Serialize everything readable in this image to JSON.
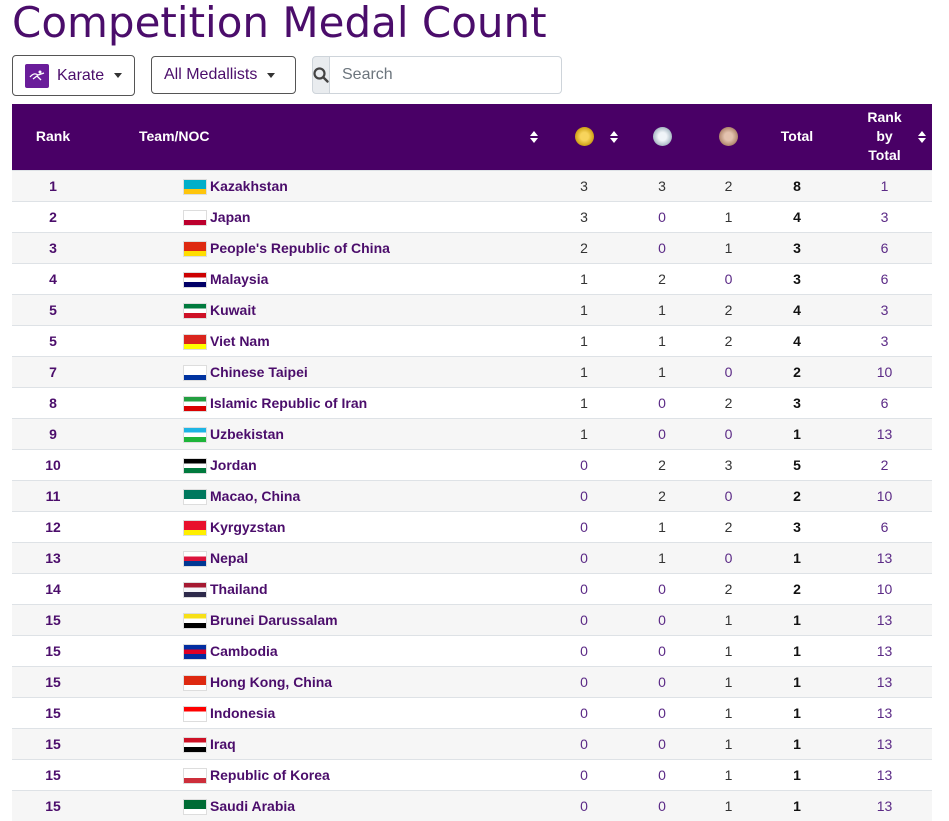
{
  "page": {
    "title": "Competition Medal Count"
  },
  "toolbar": {
    "sport_label": "Karate",
    "filter_label": "All Medallists",
    "search_placeholder": "Search"
  },
  "table": {
    "headers": {
      "rank": "Rank",
      "team": "Team/NOC",
      "total": "Total",
      "rank_by_total_1": "Rank",
      "rank_by_total_2": "by",
      "rank_by_total_3": "Total"
    },
    "rows": [
      {
        "rank": "1",
        "team": "Kazakhstan",
        "flag": [
          "#00afca",
          "#00afca",
          "#fec50c"
        ],
        "gold": "3",
        "silver": "3",
        "bronze": "2",
        "total": "8",
        "rbt": "1"
      },
      {
        "rank": "2",
        "team": "Japan",
        "flag": [
          "#ffffff",
          "#ffffff",
          "#bc002d"
        ],
        "gold": "3",
        "silver": "0",
        "bronze": "1",
        "total": "4",
        "rbt": "3"
      },
      {
        "rank": "3",
        "team": "People's Republic of China",
        "flag": [
          "#de2910",
          "#de2910",
          "#ffde00"
        ],
        "gold": "2",
        "silver": "0",
        "bronze": "1",
        "total": "3",
        "rbt": "6"
      },
      {
        "rank": "4",
        "team": "Malaysia",
        "flag": [
          "#cc0001",
          "#ffffff",
          "#010066"
        ],
        "gold": "1",
        "silver": "2",
        "bronze": "0",
        "total": "3",
        "rbt": "6"
      },
      {
        "rank": "5",
        "team": "Kuwait",
        "flag": [
          "#007a3d",
          "#ffffff",
          "#ce1126"
        ],
        "gold": "1",
        "silver": "1",
        "bronze": "2",
        "total": "4",
        "rbt": "3"
      },
      {
        "rank": "5",
        "team": "Viet Nam",
        "flag": [
          "#da251d",
          "#da251d",
          "#ffff00"
        ],
        "gold": "1",
        "silver": "1",
        "bronze": "2",
        "total": "4",
        "rbt": "3"
      },
      {
        "rank": "7",
        "team": "Chinese Taipei",
        "flag": [
          "#ffffff",
          "#ffffff",
          "#0033a0"
        ],
        "gold": "1",
        "silver": "1",
        "bronze": "0",
        "total": "2",
        "rbt": "10"
      },
      {
        "rank": "8",
        "team": "Islamic Republic of Iran",
        "flag": [
          "#239f40",
          "#ffffff",
          "#da0000"
        ],
        "gold": "1",
        "silver": "0",
        "bronze": "2",
        "total": "3",
        "rbt": "6"
      },
      {
        "rank": "9",
        "team": "Uzbekistan",
        "flag": [
          "#1eb5e4",
          "#ffffff",
          "#1eb53a"
        ],
        "gold": "1",
        "silver": "0",
        "bronze": "0",
        "total": "1",
        "rbt": "13"
      },
      {
        "rank": "10",
        "team": "Jordan",
        "flag": [
          "#000000",
          "#ffffff",
          "#007a3d"
        ],
        "gold": "0",
        "silver": "2",
        "bronze": "3",
        "total": "5",
        "rbt": "2"
      },
      {
        "rank": "11",
        "team": "Macao, China",
        "flag": [
          "#00785e",
          "#00785e",
          "#ffffff"
        ],
        "gold": "0",
        "silver": "2",
        "bronze": "0",
        "total": "2",
        "rbt": "10"
      },
      {
        "rank": "12",
        "team": "Kyrgyzstan",
        "flag": [
          "#e8112d",
          "#e8112d",
          "#ffef00"
        ],
        "gold": "0",
        "silver": "1",
        "bronze": "2",
        "total": "3",
        "rbt": "6"
      },
      {
        "rank": "13",
        "team": "Nepal",
        "flag": [
          "#ffffff",
          "#dc143c",
          "#003893"
        ],
        "gold": "0",
        "silver": "1",
        "bronze": "0",
        "total": "1",
        "rbt": "13"
      },
      {
        "rank": "14",
        "team": "Thailand",
        "flag": [
          "#a51931",
          "#f4f5f8",
          "#2d2a4a"
        ],
        "gold": "0",
        "silver": "0",
        "bronze": "2",
        "total": "2",
        "rbt": "10"
      },
      {
        "rank": "15",
        "team": "Brunei Darussalam",
        "flag": [
          "#f7e017",
          "#ffffff",
          "#000000"
        ],
        "gold": "0",
        "silver": "0",
        "bronze": "1",
        "total": "1",
        "rbt": "13"
      },
      {
        "rank": "15",
        "team": "Cambodia",
        "flag": [
          "#032ea1",
          "#e00025",
          "#032ea1"
        ],
        "gold": "0",
        "silver": "0",
        "bronze": "1",
        "total": "1",
        "rbt": "13"
      },
      {
        "rank": "15",
        "team": "Hong Kong, China",
        "flag": [
          "#de2910",
          "#de2910",
          "#ffffff"
        ],
        "gold": "0",
        "silver": "0",
        "bronze": "1",
        "total": "1",
        "rbt": "13"
      },
      {
        "rank": "15",
        "team": "Indonesia",
        "flag": [
          "#ff0000",
          "#ffffff",
          "#ffffff"
        ],
        "gold": "0",
        "silver": "0",
        "bronze": "1",
        "total": "1",
        "rbt": "13"
      },
      {
        "rank": "15",
        "team": "Iraq",
        "flag": [
          "#ce1126",
          "#ffffff",
          "#000000"
        ],
        "gold": "0",
        "silver": "0",
        "bronze": "1",
        "total": "1",
        "rbt": "13"
      },
      {
        "rank": "15",
        "team": "Republic of Korea",
        "flag": [
          "#ffffff",
          "#ffffff",
          "#cd2e3a"
        ],
        "gold": "0",
        "silver": "0",
        "bronze": "1",
        "total": "1",
        "rbt": "13"
      },
      {
        "rank": "15",
        "team": "Saudi Arabia",
        "flag": [
          "#006c35",
          "#006c35",
          "#ffffff"
        ],
        "gold": "0",
        "silver": "0",
        "bronze": "1",
        "total": "1",
        "rbt": "13"
      }
    ]
  },
  "colors": {
    "header_bg": "#490066",
    "title": "#4b0d6b",
    "link": "#4b0d6b"
  }
}
